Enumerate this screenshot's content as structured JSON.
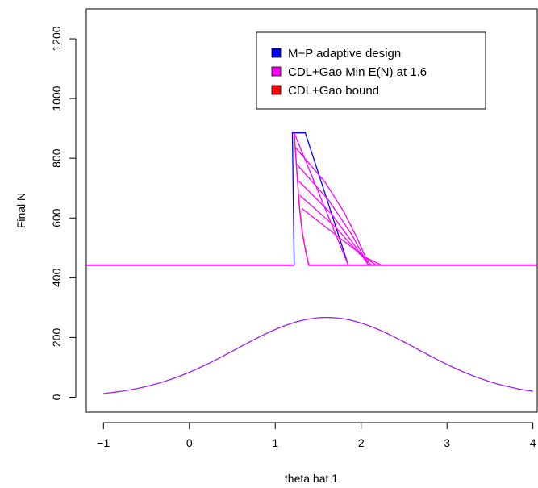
{
  "chart_data": {
    "type": "line",
    "title": "",
    "xlabel": "theta hat 1",
    "ylabel": "Final N",
    "xlim": [
      -1.2,
      4.05
    ],
    "ylim": [
      -50,
      1300
    ],
    "xticks": [
      -1,
      0,
      1,
      2,
      3,
      4
    ],
    "xtick_labels": [
      "−1",
      "0",
      "1",
      "2",
      "3",
      "4"
    ],
    "yticks": [
      0,
      200,
      400,
      600,
      800,
      1000,
      1200
    ],
    "ytick_labels": [
      "0",
      "200",
      "400",
      "600",
      "800",
      "1000",
      "1200"
    ],
    "grid": false,
    "legend_position": "top-right",
    "legend": [
      {
        "label": "M−P adaptive design",
        "color": "#0000ff"
      },
      {
        "label": "CDL+Gao Min E(N) at 1.6",
        "color": "#ff00ff"
      },
      {
        "label": "CDL+Gao bound",
        "color": "#ff0000"
      }
    ],
    "series": [
      {
        "name": "M−P adaptive design",
        "color": "#0000ff",
        "points": [
          [
            1.22,
            442
          ],
          [
            1.22,
            442
          ],
          [
            1.2,
            885
          ],
          [
            1.35,
            885
          ],
          [
            1.85,
            442
          ],
          [
            4.05,
            442
          ]
        ]
      },
      {
        "name": "CDL+Gao bound",
        "color": "#ff0000",
        "points": [
          [
            1.22,
            885
          ],
          [
            1.25,
            760
          ],
          [
            1.28,
            640
          ],
          [
            1.31,
            560
          ],
          [
            1.35,
            495
          ],
          [
            1.39,
            442
          ],
          [
            1.85,
            442
          ]
        ]
      },
      {
        "name": "CDL+Gao Min E(N) at 1.6",
        "color": "#ff00ff",
        "segments": [
          [
            [
              -1.2,
              442
            ],
            [
              1.22,
              442
            ]
          ],
          [
            [
              1.39,
              442
            ],
            [
              4.05,
              442
            ]
          ],
          [
            [
              1.22,
              885
            ],
            [
              1.25,
              760
            ],
            [
              1.28,
              640
            ],
            [
              1.31,
              560
            ],
            [
              1.35,
              495
            ],
            [
              1.39,
              442
            ]
          ],
          [
            [
              1.22,
              885
            ],
            [
              1.85,
              442
            ]
          ],
          [
            [
              1.23,
              838
            ],
            [
              1.58,
              720
            ],
            [
              1.8,
              620
            ],
            [
              1.95,
              535
            ],
            [
              2.05,
              470
            ],
            [
              2.08,
              442
            ]
          ],
          [
            [
              1.25,
              780
            ],
            [
              1.62,
              660
            ],
            [
              1.9,
              540
            ],
            [
              2.05,
              460
            ],
            [
              2.12,
              442
            ]
          ],
          [
            [
              1.27,
              725
            ],
            [
              1.65,
              615
            ],
            [
              1.92,
              510
            ],
            [
              2.08,
              445
            ],
            [
              2.16,
              442
            ]
          ],
          [
            [
              1.29,
              675
            ],
            [
              1.7,
              570
            ],
            [
              1.98,
              480
            ],
            [
              2.18,
              442
            ]
          ],
          [
            [
              1.31,
              632
            ],
            [
              1.72,
              540
            ],
            [
              2.04,
              470
            ],
            [
              2.24,
              442
            ]
          ]
        ]
      },
      {
        "name": "density",
        "color": "#a020f0",
        "function": "normal",
        "mean": 1.6,
        "sd": 1.05,
        "peak": 267,
        "floor": 0,
        "xrange": [
          -1.0,
          4.0
        ]
      }
    ]
  }
}
